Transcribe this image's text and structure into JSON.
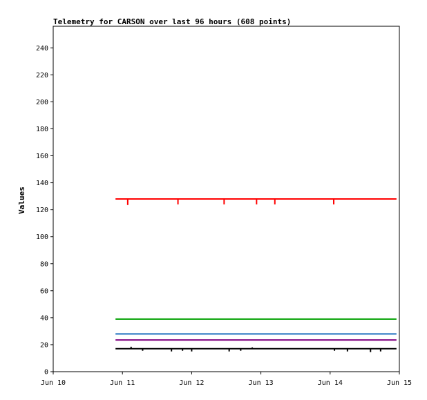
{
  "chart_data": {
    "type": "line",
    "title": "Telemetry for CARSON over last 96 hours (608 points)",
    "xlabel": "",
    "ylabel": "Values",
    "x_ticks": [
      "Jun 10",
      "Jun 11",
      "Jun 12",
      "Jun 13",
      "Jun 14",
      "Jun 15"
    ],
    "xlim": [
      "Jun 10 00:00",
      "Jun 15 00:00"
    ],
    "x_start": "Jun 10 21:36",
    "x_end": "Jun 14 23:00",
    "ylim": [
      0,
      256
    ],
    "y_ticks": [
      0,
      20,
      40,
      60,
      80,
      100,
      120,
      140,
      160,
      180,
      200,
      220,
      240
    ],
    "grid": false,
    "legend": "none",
    "series": [
      {
        "color": "#ff0000",
        "baseline": 128,
        "dips": [
          {
            "x": "Jun 11 01:50",
            "y": 123.5
          },
          {
            "x": "Jun 11 19:15",
            "y": 124
          },
          {
            "x": "Jun 12 11:15",
            "y": 124
          },
          {
            "x": "Jun 12 22:30",
            "y": 124
          },
          {
            "x": "Jun 13 04:50",
            "y": 124
          },
          {
            "x": "Jun 14 01:15",
            "y": 124
          }
        ]
      },
      {
        "color": "#00a000",
        "baseline": 39,
        "dips": []
      },
      {
        "color": "#1e6fbf",
        "baseline": 28,
        "dips": []
      },
      {
        "color": "#800080",
        "baseline": 23.5,
        "dips": []
      },
      {
        "color": "#000000",
        "baseline": 17,
        "dips": [
          {
            "x": "Jun 11 03:00",
            "y": 18.5
          },
          {
            "x": "Jun 11 07:00",
            "y": 15.5
          },
          {
            "x": "Jun 11 17:00",
            "y": 15
          },
          {
            "x": "Jun 11 20:50",
            "y": 15.5
          },
          {
            "x": "Jun 12 00:00",
            "y": 15
          },
          {
            "x": "Jun 12 13:00",
            "y": 15
          },
          {
            "x": "Jun 12 17:00",
            "y": 15.5
          },
          {
            "x": "Jun 12 21:00",
            "y": 18
          },
          {
            "x": "Jun 14 01:30",
            "y": 15.5
          },
          {
            "x": "Jun 14 06:00",
            "y": 15
          },
          {
            "x": "Jun 14 14:00",
            "y": 14.5
          },
          {
            "x": "Jun 14 17:30",
            "y": 15
          }
        ]
      }
    ]
  }
}
